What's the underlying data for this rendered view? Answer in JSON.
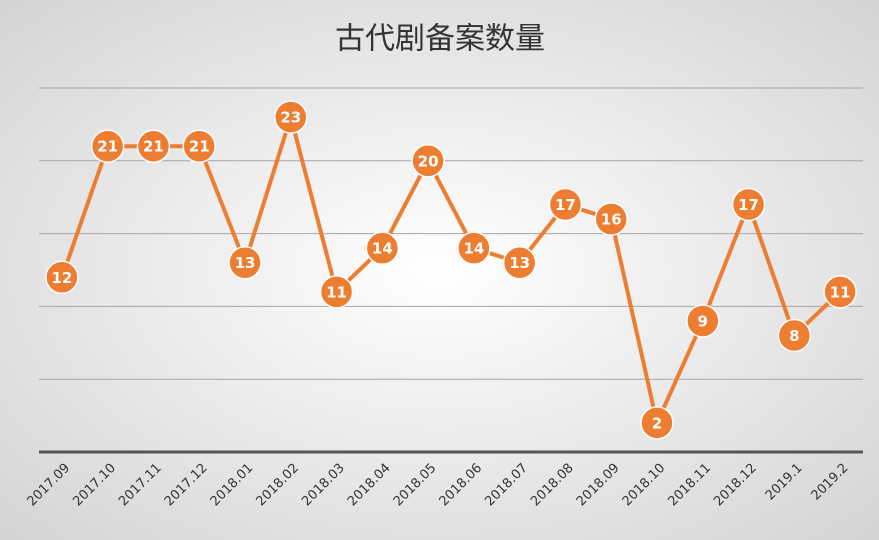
{
  "chart_data": {
    "type": "line",
    "title": "古代剧备案数量",
    "categories": [
      "2017.09",
      "2017.10",
      "2017.11",
      "2017.12",
      "2018.01",
      "2018.02",
      "2018.03",
      "2018.04",
      "2018.05",
      "2018.06",
      "2018.07",
      "2018.08",
      "2018.09",
      "2018.10",
      "2018.11",
      "2018.12",
      "2019.1",
      "2019.2"
    ],
    "values": [
      12,
      21,
      21,
      21,
      13,
      23,
      11,
      14,
      20,
      14,
      13,
      17,
      16,
      2,
      9,
      17,
      8,
      11
    ],
    "color": "#ed7d31",
    "ylim": [
      0,
      25
    ],
    "yticks": [
      0,
      5,
      10,
      15,
      20,
      25
    ],
    "grid": true
  }
}
